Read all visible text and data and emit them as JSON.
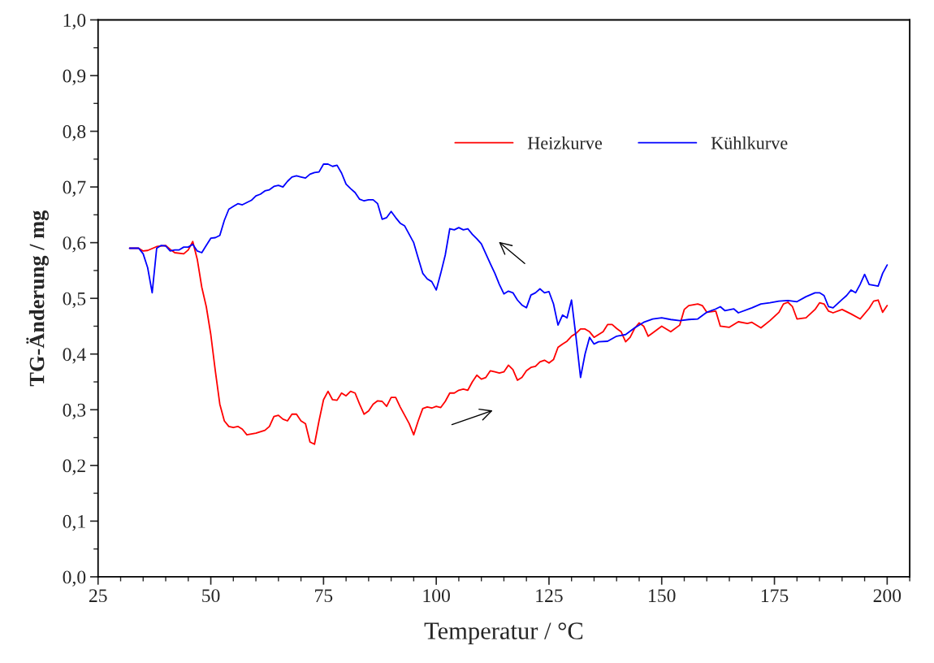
{
  "chart_data": {
    "type": "line",
    "xlabel": "Temperatur / °C",
    "ylabel": "TG-Änderung / mg",
    "xlim": [
      25,
      205
    ],
    "ylim": [
      0,
      1
    ],
    "xticks": [
      25,
      50,
      75,
      100,
      125,
      150,
      175,
      200
    ],
    "yticks": [
      {
        "value": 0,
        "label": "0,0"
      },
      {
        "value": 0.1,
        "label": "0,1"
      },
      {
        "value": 0.2,
        "label": "0,2"
      },
      {
        "value": 0.3,
        "label": "0,3"
      },
      {
        "value": 0.4,
        "label": "0,4"
      },
      {
        "value": 0.5,
        "label": "0,5"
      },
      {
        "value": 0.6,
        "label": "0,6"
      },
      {
        "value": 0.7,
        "label": "0,7"
      },
      {
        "value": 0.8,
        "label": "0,8"
      },
      {
        "value": 0.9,
        "label": "0,9"
      },
      {
        "value": 1.0,
        "label": "1,0"
      }
    ],
    "grid": false,
    "legend": "top right",
    "marker": "none",
    "line_style": "solid",
    "series": [
      {
        "name": "Heizkurve",
        "color": "#ff0000",
        "x": [
          32,
          34,
          35,
          36,
          38,
          40,
          41,
          42,
          44,
          45,
          46,
          47,
          48,
          49,
          50,
          51,
          52,
          53,
          54,
          55,
          56,
          57,
          58,
          60,
          62,
          63,
          64,
          65,
          66,
          67,
          68,
          69,
          70,
          71,
          72,
          73,
          74,
          75,
          76,
          77,
          78,
          79,
          80,
          81,
          82,
          83,
          84,
          85,
          86,
          87,
          88,
          89,
          90,
          91,
          92,
          93,
          94,
          95,
          96,
          97,
          98,
          99,
          100,
          101,
          102,
          103,
          104,
          105,
          106,
          107,
          108,
          109,
          110,
          111,
          112,
          113,
          114,
          115,
          116,
          117,
          118,
          119,
          120,
          121,
          122,
          123,
          124,
          125,
          126,
          127,
          128,
          129,
          130,
          131,
          132,
          133,
          134,
          135,
          136,
          137,
          138,
          139,
          140,
          141,
          142,
          143,
          144,
          145,
          146,
          147,
          148,
          150,
          152,
          154,
          155,
          156,
          158,
          159,
          160,
          162,
          163,
          165,
          167,
          169,
          170,
          172,
          174,
          176,
          177,
          178,
          179,
          180,
          182,
          184,
          185,
          186,
          187,
          188,
          190,
          192,
          194,
          196,
          197,
          198,
          199,
          200
        ],
        "values": [
          0.59,
          0.59,
          0.585,
          0.586,
          0.593,
          0.595,
          0.588,
          0.582,
          0.58,
          0.587,
          0.602,
          0.57,
          0.52,
          0.485,
          0.435,
          0.37,
          0.31,
          0.28,
          0.27,
          0.268,
          0.27,
          0.265,
          0.255,
          0.258,
          0.263,
          0.27,
          0.288,
          0.29,
          0.283,
          0.28,
          0.292,
          0.292,
          0.28,
          0.275,
          0.242,
          0.238,
          0.28,
          0.318,
          0.333,
          0.318,
          0.317,
          0.33,
          0.325,
          0.333,
          0.33,
          0.31,
          0.292,
          0.298,
          0.31,
          0.316,
          0.315,
          0.306,
          0.322,
          0.322,
          0.305,
          0.29,
          0.275,
          0.255,
          0.28,
          0.302,
          0.305,
          0.303,
          0.306,
          0.304,
          0.315,
          0.33,
          0.33,
          0.335,
          0.337,
          0.335,
          0.35,
          0.362,
          0.355,
          0.358,
          0.37,
          0.368,
          0.366,
          0.368,
          0.38,
          0.372,
          0.353,
          0.358,
          0.37,
          0.376,
          0.378,
          0.386,
          0.389,
          0.384,
          0.39,
          0.412,
          0.418,
          0.423,
          0.432,
          0.437,
          0.445,
          0.445,
          0.44,
          0.43,
          0.435,
          0.44,
          0.453,
          0.453,
          0.446,
          0.44,
          0.422,
          0.43,
          0.446,
          0.456,
          0.45,
          0.432,
          0.438,
          0.45,
          0.44,
          0.452,
          0.48,
          0.487,
          0.49,
          0.487,
          0.475,
          0.477,
          0.45,
          0.448,
          0.458,
          0.455,
          0.457,
          0.447,
          0.46,
          0.475,
          0.49,
          0.493,
          0.485,
          0.463,
          0.465,
          0.48,
          0.492,
          0.49,
          0.477,
          0.474,
          0.48,
          0.472,
          0.463,
          0.482,
          0.495,
          0.497,
          0.475,
          0.487
        ]
      },
      {
        "name": "Kühlkurve",
        "color": "#0000ff",
        "x": [
          32,
          34,
          35,
          36,
          37,
          38,
          39,
          40,
          41,
          42,
          43,
          44,
          45,
          46,
          47,
          48,
          49,
          50,
          51,
          52,
          53,
          54,
          55,
          56,
          57,
          58,
          59,
          60,
          61,
          62,
          63,
          64,
          65,
          66,
          67,
          68,
          69,
          70,
          71,
          72,
          73,
          74,
          75,
          76,
          77,
          78,
          79,
          80,
          81,
          82,
          83,
          84,
          85,
          86,
          87,
          88,
          89,
          90,
          91,
          92,
          93,
          94,
          95,
          96,
          97,
          98,
          99,
          100,
          101,
          102,
          103,
          104,
          105,
          106,
          107,
          108,
          109,
          110,
          111,
          112,
          113,
          114,
          115,
          116,
          117,
          118,
          119,
          120,
          121,
          122,
          123,
          124,
          125,
          126,
          127,
          128,
          129,
          130,
          131,
          132,
          133,
          134,
          135,
          136,
          138,
          140,
          142,
          144,
          146,
          148,
          150,
          152,
          154,
          156,
          158,
          160,
          162,
          163,
          164,
          166,
          167,
          170,
          172,
          174,
          176,
          178,
          180,
          182,
          184,
          185,
          186,
          187,
          188,
          190,
          191,
          192,
          193,
          194,
          195,
          196,
          198,
          199,
          200
        ],
        "values": [
          0.59,
          0.59,
          0.58,
          0.555,
          0.51,
          0.59,
          0.595,
          0.594,
          0.585,
          0.587,
          0.587,
          0.592,
          0.592,
          0.597,
          0.585,
          0.582,
          0.595,
          0.608,
          0.609,
          0.613,
          0.64,
          0.66,
          0.665,
          0.67,
          0.668,
          0.672,
          0.676,
          0.684,
          0.687,
          0.693,
          0.695,
          0.701,
          0.703,
          0.7,
          0.71,
          0.718,
          0.72,
          0.718,
          0.716,
          0.723,
          0.726,
          0.727,
          0.741,
          0.741,
          0.737,
          0.739,
          0.725,
          0.705,
          0.697,
          0.69,
          0.678,
          0.675,
          0.677,
          0.677,
          0.67,
          0.642,
          0.645,
          0.656,
          0.645,
          0.635,
          0.63,
          0.615,
          0.6,
          0.572,
          0.545,
          0.535,
          0.53,
          0.515,
          0.545,
          0.578,
          0.625,
          0.623,
          0.627,
          0.623,
          0.625,
          0.615,
          0.607,
          0.598,
          0.58,
          0.562,
          0.545,
          0.525,
          0.508,
          0.513,
          0.51,
          0.497,
          0.488,
          0.483,
          0.506,
          0.51,
          0.517,
          0.51,
          0.512,
          0.49,
          0.452,
          0.47,
          0.465,
          0.497,
          0.43,
          0.358,
          0.4,
          0.43,
          0.418,
          0.422,
          0.423,
          0.432,
          0.435,
          0.447,
          0.457,
          0.463,
          0.465,
          0.462,
          0.46,
          0.462,
          0.463,
          0.475,
          0.481,
          0.485,
          0.478,
          0.481,
          0.474,
          0.483,
          0.49,
          0.492,
          0.495,
          0.496,
          0.494,
          0.503,
          0.51,
          0.51,
          0.505,
          0.485,
          0.483,
          0.498,
          0.505,
          0.515,
          0.51,
          0.525,
          0.543,
          0.525,
          0.522,
          0.545,
          0.56
        ]
      }
    ]
  }
}
